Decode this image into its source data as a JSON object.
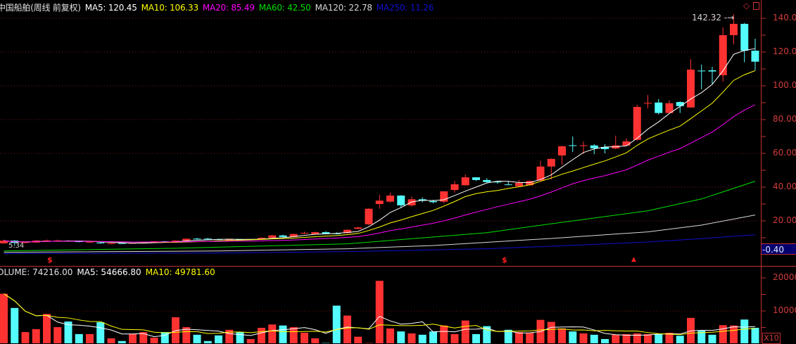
{
  "header": {
    "title": "中国船舶(周线 前复权)",
    "ma5": "MA5: 120.45",
    "ma10": "MA10: 106.33",
    "ma20": "MA20: 85.49",
    "ma60": "MA60: 42.50",
    "ma120": "MA120: 22.78",
    "ma250": "MA250: 11.26"
  },
  "volume_header": {
    "volume": "OLUME: 74216.00",
    "ma5": "MA5: 54666.80",
    "ma10": "MA10: 49781.60"
  },
  "icons": {
    "top_right": [
      "diamond-icon",
      "window-box-icon"
    ],
    "markers": [
      "dollar-marker",
      "dollar-marker",
      "up-arrow-marker"
    ]
  },
  "labels": {
    "high": "142.32",
    "low": "5.34",
    "readout": "-0.40",
    "volume_unit": "X10",
    "dollar": "$"
  },
  "colors": {
    "up": "#ff3232",
    "down": "#54fcfc",
    "ma5": "#ffffff",
    "ma10": "#ffff00",
    "ma20": "#ff00ff",
    "ma60": "#00e000",
    "ma120": "#d8d8d8",
    "ma250": "#1010d0",
    "axis": "#c03030",
    "grid": "#801818"
  },
  "chart_data": [
    {
      "type": "candlestick",
      "period": "weekly",
      "ylim": [
        0,
        150
      ],
      "y_ticks": [
        "140.00",
        "120.00",
        "100.00",
        "80.00",
        "60.00",
        "40.00",
        "20.00"
      ],
      "y_tick_values": [
        140,
        120,
        100,
        80,
        60,
        40,
        20
      ],
      "grid": true,
      "ohlc": [
        [
          6.7,
          8.8,
          6.5,
          8.3
        ],
        [
          8.3,
          8.5,
          5.34,
          7.0
        ],
        [
          7.0,
          7.8,
          6.6,
          7.4
        ],
        [
          7.2,
          8.5,
          7.0,
          8.3
        ],
        [
          8.2,
          8.9,
          8.0,
          8.4
        ],
        [
          8.2,
          8.9,
          8.0,
          8.4
        ],
        [
          8.3,
          8.6,
          7.7,
          7.9
        ],
        [
          7.9,
          8.1,
          7.3,
          7.5
        ],
        [
          7.3,
          7.8,
          7.1,
          7.6
        ],
        [
          7.2,
          7.4,
          6.5,
          6.7
        ],
        [
          6.25,
          6.9,
          6.1,
          6.7
        ],
        [
          6.8,
          6.9,
          6.5,
          6.6
        ],
        [
          6.6,
          7.0,
          6.5,
          6.9
        ],
        [
          6.9,
          7.3,
          6.8,
          7.2
        ],
        [
          7.2,
          8.0,
          7.1,
          7.9
        ],
        [
          7.9,
          8.1,
          7.6,
          7.7
        ],
        [
          7.5,
          8.5,
          7.4,
          8.3
        ],
        [
          8.3,
          9.6,
          8.1,
          9.4
        ],
        [
          9.5,
          10.0,
          8.9,
          9.3
        ],
        [
          9.5,
          9.9,
          8.9,
          9.3
        ],
        [
          9.1,
          9.5,
          8.7,
          8.95
        ],
        [
          8.8,
          9.3,
          8.6,
          9.0
        ],
        [
          9.0,
          9.2,
          8.6,
          8.8
        ],
        [
          8.8,
          9.3,
          8.7,
          9.2
        ],
        [
          9.2,
          10.3,
          9.0,
          10.0
        ],
        [
          10.0,
          11.8,
          9.8,
          11.4
        ],
        [
          11.4,
          11.8,
          10.3,
          10.5
        ],
        [
          10.5,
          12.5,
          10.4,
          12.2
        ],
        [
          12.6,
          13.6,
          12.2,
          12.9
        ],
        [
          12.2,
          13.6,
          12.0,
          13.3
        ],
        [
          13.3,
          13.9,
          12.3,
          12.5
        ],
        [
          12.6,
          13.2,
          12.0,
          12.2
        ],
        [
          12.8,
          14.9,
          12.5,
          14.7
        ],
        [
          15.3,
          16.4,
          15.0,
          16.1
        ],
        [
          18,
          27.5,
          17.5,
          27.2
        ],
        [
          30,
          35.5,
          27.2,
          32
        ],
        [
          31.4,
          36.7,
          31,
          35
        ],
        [
          35,
          35.2,
          27.9,
          29.2
        ],
        [
          29.2,
          34.5,
          28.5,
          32.8
        ],
        [
          32.8,
          34,
          31,
          32
        ],
        [
          31.7,
          32.5,
          30.4,
          31.1
        ],
        [
          31.4,
          37.5,
          30.5,
          37.5
        ],
        [
          38.3,
          43.75,
          36.7,
          41.7
        ],
        [
          41.1,
          47.5,
          41,
          45.8
        ],
        [
          45.8,
          45.9,
          43.7,
          44.2
        ],
        [
          44.2,
          45.3,
          42.5,
          43
        ],
        [
          43.2,
          43.7,
          42,
          42.9
        ],
        [
          41.6,
          43.6,
          41.2,
          41.3
        ],
        [
          40.5,
          44.2,
          40.3,
          42.5
        ],
        [
          41.1,
          44,
          41,
          43.6
        ],
        [
          43.9,
          55.7,
          43.5,
          52.2
        ],
        [
          52.2,
          57,
          44.6,
          56.7
        ],
        [
          58.75,
          64.5,
          53.3,
          64.2
        ],
        [
          64.8,
          70,
          60.8,
          64.6
        ],
        [
          64.4,
          67,
          59.6,
          64.8
        ],
        [
          64.7,
          65.5,
          59.5,
          63
        ],
        [
          63.75,
          65.4,
          60,
          62.5
        ],
        [
          62.9,
          70.5,
          62.5,
          64.7
        ],
        [
          64.6,
          68.8,
          64.4,
          67.1
        ],
        [
          68,
          88.8,
          67.5,
          87.5
        ],
        [
          89.5,
          94.6,
          86.7,
          89.9
        ],
        [
          90.1,
          92.2,
          83,
          83.9
        ],
        [
          83.9,
          91.4,
          83.9,
          89.7
        ],
        [
          90.4,
          90.8,
          83.9,
          88
        ],
        [
          87.2,
          115.8,
          87,
          109.6
        ],
        [
          109,
          112.6,
          98,
          108.6
        ],
        [
          109.2,
          111.25,
          100.8,
          108.5
        ],
        [
          106.3,
          134.6,
          102.5,
          130
        ],
        [
          130,
          142.32,
          124.6,
          136.7
        ],
        [
          136.7,
          137.2,
          113.9,
          120.8
        ],
        [
          120.8,
          127.9,
          109.2,
          114.3
        ]
      ],
      "long_ma_points": {
        "ma60": [
          [
            0,
            2.2
          ],
          [
            16,
            3.8
          ],
          [
            32,
            6.4
          ],
          [
            45,
            13
          ],
          [
            51,
            18.3
          ],
          [
            60,
            26
          ],
          [
            65,
            33
          ],
          [
            70,
            43.5
          ]
        ],
        "ma120": [
          [
            0,
            1.4
          ],
          [
            20,
            2.2
          ],
          [
            32,
            3.5
          ],
          [
            40,
            5.4
          ],
          [
            51,
            9.6
          ],
          [
            60,
            13.5
          ],
          [
            65,
            17.5
          ],
          [
            70,
            23.5
          ]
        ],
        "ma250": [
          [
            0,
            0.6
          ],
          [
            20,
            1.0
          ],
          [
            32,
            1.8
          ],
          [
            45,
            3.5
          ],
          [
            51,
            5
          ],
          [
            60,
            7.5
          ],
          [
            65,
            9.5
          ],
          [
            70,
            11.8
          ]
        ]
      },
      "markers": [
        {
          "index": 4,
          "kind": "dollar"
        },
        {
          "index": 46,
          "kind": "dollar"
        },
        {
          "index": 59,
          "kind": "arrow"
        }
      ]
    },
    {
      "type": "bar",
      "title": "VOLUME",
      "ylim": [
        0,
        23000
      ],
      "y_ticks": [
        "20000",
        "10000"
      ],
      "y_tick_values": [
        20000,
        10000
      ],
      "values": [
        15200,
        10900,
        3600,
        4500,
        9100,
        5100,
        6800,
        3000,
        3000,
        6600,
        1700,
        900,
        3000,
        3600,
        1900,
        3600,
        8100,
        5100,
        2800,
        900,
        2600,
        4300,
        3600,
        1500,
        4900,
        5900,
        5600,
        5100,
        3400,
        1700,
        300,
        11600,
        8600,
        2200,
        300,
        19100,
        4700,
        3800,
        3200,
        2800,
        3800,
        5600,
        3000,
        7100,
        3000,
        5400,
        200,
        4300,
        3600,
        3400,
        7300,
        6700,
        4700,
        3800,
        3200,
        2800,
        1500,
        2800,
        3000,
        3200,
        3000,
        3000,
        3400,
        2500,
        7900,
        4000,
        2800,
        5700,
        5600,
        7400,
        4900
      ]
    }
  ]
}
